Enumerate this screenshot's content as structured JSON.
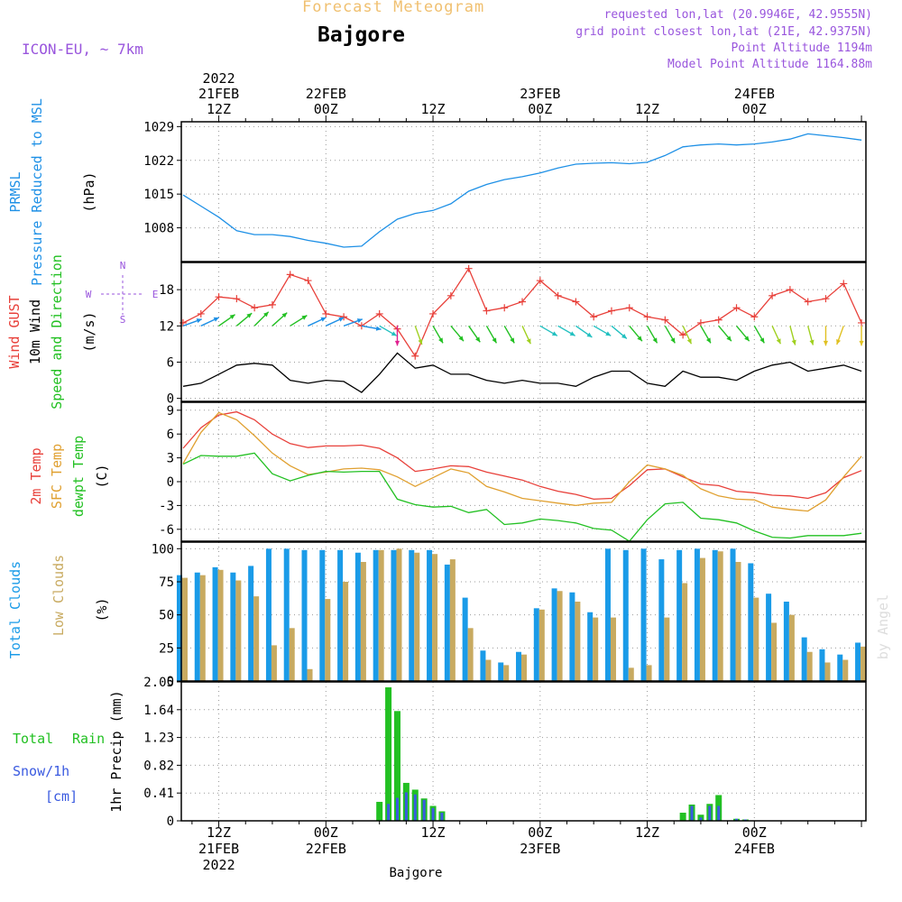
{
  "header": {
    "subtitle": "Forecast Meteogram",
    "title": "Bajgore",
    "model": "ICON-EU, ~ 7km",
    "requested": "requested lon,lat (20.9946E, 42.9555N)",
    "gridpoint": "grid point closest lon,lat (21E, 42.9375N)",
    "altitude": "Point Altitude 1194m",
    "model_altitude": "Model Point Altitude 1164.88m",
    "footer_location": "Bajgore",
    "watermark": "by Angel"
  },
  "colors": {
    "pressure": "#1e90e6",
    "gust": "#e8403a",
    "wind10m": "#000000",
    "temp2m": "#e8403a",
    "sfc_temp": "#e0a030",
    "dewpt": "#22c022",
    "total_clouds": "#1a9be8",
    "low_clouds": "#c8aa60",
    "rain": "#22c022",
    "snow": "#3a5ae0",
    "meta": "#9955dd",
    "subtitle": "#f0c070",
    "grid": "#999999"
  },
  "axis_time": {
    "top_labels": [
      {
        "t": 12,
        "lines": [
          "2022",
          "21FEB",
          "12Z"
        ]
      },
      {
        "t": 24,
        "lines": [
          "22FEB",
          "00Z"
        ]
      },
      {
        "t": 36,
        "lines": [
          "12Z"
        ]
      },
      {
        "t": 48,
        "lines": [
          "23FEB",
          "00Z"
        ]
      },
      {
        "t": 60,
        "lines": [
          "12Z"
        ]
      },
      {
        "t": 72,
        "lines": [
          "24FEB",
          "00Z"
        ]
      }
    ],
    "bottom_labels": [
      {
        "t": 12,
        "lines": [
          "12Z",
          "21FEB",
          "2022"
        ]
      },
      {
        "t": 24,
        "lines": [
          "00Z",
          "22FEB"
        ]
      },
      {
        "t": 36,
        "lines": [
          "12Z"
        ]
      },
      {
        "t": 48,
        "lines": [
          "00Z",
          "23FEB"
        ]
      },
      {
        "t": 60,
        "lines": [
          "12Z"
        ]
      },
      {
        "t": 72,
        "lines": [
          "00Z",
          "24FEB"
        ]
      }
    ],
    "start_hour": 7.8,
    "end_hour": 84.5
  },
  "panels": {
    "pressure": {
      "labels": [
        "PRMSL",
        "Pressure Reduced to MSL",
        "(hPa)"
      ],
      "ticks": [
        "1029",
        "1022",
        "1015",
        "1008"
      ]
    },
    "wind": {
      "labels": [
        "Wind GUST",
        "10m Wind",
        "Speed and Direction",
        "(m/s)"
      ],
      "ticks": [
        "18",
        "12",
        "6",
        "0"
      ],
      "compass": [
        "N",
        "W",
        "E",
        "S"
      ]
    },
    "temp": {
      "labels": [
        "2m Temp",
        "SFC Temp",
        "dewpt Temp",
        "(C)"
      ],
      "ticks": [
        "9",
        "6",
        "3",
        "0",
        "-3",
        "-6"
      ]
    },
    "clouds": {
      "labels": [
        "Total Clouds",
        "Low Clouds",
        "(%)"
      ],
      "ticks": [
        "100",
        "75",
        "50",
        "25",
        "0"
      ]
    },
    "precip": {
      "labels": [
        "Total",
        "Rain",
        "Snow/1h",
        "[cm]",
        "1hr Precip (mm)"
      ],
      "ticks": [
        "2.05",
        "1.64",
        "1.23",
        "0.82",
        "0.41",
        "0"
      ]
    }
  },
  "chart_data": [
    {
      "type": "line",
      "title": "PRMSL Pressure Reduced to MSL",
      "ylabel": "(hPa)",
      "ylim": [
        1001,
        1030
      ],
      "x": [
        8,
        10,
        12,
        14,
        16,
        18,
        20,
        22,
        24,
        26,
        28,
        30,
        32,
        34,
        36,
        38,
        40,
        42,
        44,
        46,
        48,
        50,
        52,
        54,
        56,
        58,
        60,
        62,
        64,
        66,
        68,
        70,
        72,
        74,
        76,
        78,
        80,
        82,
        84
      ],
      "series": [
        {
          "name": "PRMSL",
          "values": [
            1014.8,
            1012.5,
            1010.2,
            1007.4,
            1006.6,
            1006.6,
            1006.2,
            1005.4,
            1004.8,
            1004.0,
            1004.2,
            1007.2,
            1009.8,
            1011.0,
            1011.6,
            1013.0,
            1015.6,
            1017.0,
            1018.0,
            1018.6,
            1019.4,
            1020.4,
            1021.2,
            1021.4,
            1021.5,
            1021.3,
            1021.6,
            1023.0,
            1024.8,
            1025.2,
            1025.4,
            1025.2,
            1025.4,
            1025.8,
            1026.4,
            1027.5,
            1027.1,
            1026.7,
            1026.2
          ]
        }
      ],
      "grid": true
    },
    {
      "type": "line",
      "title": "Wind GUST / 10m Wind Speed and Direction",
      "ylabel": "(m/s)",
      "ylim": [
        -0.5,
        22.5
      ],
      "x": [
        8,
        10,
        12,
        14,
        16,
        18,
        20,
        22,
        24,
        26,
        28,
        30,
        32,
        34,
        36,
        38,
        40,
        42,
        44,
        46,
        48,
        50,
        52,
        54,
        56,
        58,
        60,
        62,
        64,
        66,
        68,
        70,
        72,
        74,
        76,
        78,
        80,
        82,
        84
      ],
      "series": [
        {
          "name": "Wind GUST",
          "values": [
            12.5,
            14.0,
            16.8,
            16.5,
            15.0,
            15.5,
            20.5,
            19.5,
            14.0,
            13.5,
            12.0,
            14.0,
            11.5,
            7.0,
            14.0,
            17.0,
            21.5,
            14.5,
            15.0,
            16.0,
            19.5,
            17.0,
            16.0,
            13.5,
            14.5,
            15.0,
            13.5,
            13.0,
            10.5,
            12.5,
            13.0,
            15.0,
            13.5,
            17.0,
            18.0,
            16.0,
            16.5,
            19.0,
            12.5
          ]
        },
        {
          "name": "10m Wind",
          "values": [
            2.0,
            2.5,
            4.0,
            5.5,
            5.8,
            5.5,
            3.0,
            2.5,
            3.0,
            2.8,
            1.0,
            4.0,
            7.5,
            5.0,
            5.5,
            4.0,
            4.0,
            3.0,
            2.5,
            3.0,
            2.5,
            2.5,
            2.0,
            3.5,
            4.5,
            4.5,
            2.5,
            2.0,
            4.5,
            3.5,
            3.5,
            3.0,
            4.5,
            5.5,
            6.0,
            4.5,
            5.0,
            5.5,
            4.5
          ]
        }
      ],
      "grid": true
    },
    {
      "type": "line",
      "title": "2m Temp / SFC Temp / dewpt Temp",
      "ylabel": "(C)",
      "ylim": [
        -7.5,
        10
      ],
      "x": [
        8,
        10,
        12,
        14,
        16,
        18,
        20,
        22,
        24,
        26,
        28,
        30,
        32,
        34,
        36,
        38,
        40,
        42,
        44,
        46,
        48,
        50,
        52,
        54,
        56,
        58,
        60,
        62,
        64,
        66,
        68,
        70,
        72,
        74,
        76,
        78,
        80,
        82,
        84
      ],
      "series": [
        {
          "name": "2m Temp",
          "values": [
            4.2,
            6.8,
            8.4,
            8.8,
            7.8,
            6.0,
            4.8,
            4.3,
            4.5,
            4.5,
            4.6,
            4.2,
            3.0,
            1.3,
            1.6,
            2.0,
            1.9,
            1.2,
            0.7,
            0.2,
            -0.6,
            -1.2,
            -1.6,
            -2.2,
            -2.1,
            -0.5,
            1.5,
            1.6,
            0.6,
            -0.3,
            -0.5,
            -1.2,
            -1.4,
            -1.7,
            -1.8,
            -2.1,
            -1.4,
            0.5,
            1.4
          ]
        },
        {
          "name": "SFC Temp",
          "values": [
            2.3,
            6.2,
            8.7,
            7.8,
            5.8,
            3.6,
            2.0,
            0.9,
            1.2,
            1.6,
            1.7,
            1.5,
            0.6,
            -0.6,
            0.5,
            1.6,
            1.1,
            -0.6,
            -1.3,
            -2.1,
            -2.4,
            -2.7,
            -3.0,
            -2.7,
            -2.6,
            0.0,
            2.1,
            1.6,
            0.8,
            -0.9,
            -1.8,
            -2.2,
            -2.3,
            -3.2,
            -3.5,
            -3.7,
            -2.3,
            0.6,
            3.2
          ]
        },
        {
          "name": "dewpt Temp",
          "values": [
            2.2,
            3.3,
            3.2,
            3.2,
            3.6,
            1.0,
            0.1,
            0.8,
            1.3,
            1.2,
            1.3,
            1.3,
            -2.2,
            -2.9,
            -3.2,
            -3.1,
            -3.9,
            -3.5,
            -5.4,
            -5.2,
            -4.7,
            -4.9,
            -5.2,
            -5.9,
            -6.1,
            -7.5,
            -4.8,
            -2.8,
            -2.6,
            -4.6,
            -4.8,
            -5.2,
            -6.2,
            -7.0,
            -7.1,
            -6.8,
            -6.8,
            -6.8,
            -6.5
          ]
        }
      ],
      "grid": true
    },
    {
      "type": "bar",
      "title": "Total Clouds / Low Clouds",
      "ylabel": "(%)",
      "ylim": [
        0,
        105
      ],
      "x": [
        8,
        10,
        12,
        14,
        16,
        18,
        20,
        22,
        24,
        26,
        28,
        30,
        32,
        34,
        36,
        38,
        40,
        42,
        44,
        46,
        48,
        50,
        52,
        54,
        56,
        58,
        60,
        62,
        64,
        66,
        68,
        70,
        72,
        74,
        76,
        78,
        80,
        82,
        84
      ],
      "series": [
        {
          "name": "Total Clouds",
          "values": [
            80,
            82,
            86,
            82,
            87,
            100,
            100,
            99,
            99,
            99,
            97,
            99,
            99,
            99,
            99,
            88,
            63,
            23,
            14,
            22,
            55,
            70,
            67,
            52,
            100,
            99,
            100,
            92,
            99,
            100,
            99,
            100,
            89,
            66,
            60,
            33,
            24,
            20,
            29
          ]
        },
        {
          "name": "Low Clouds",
          "values": [
            78,
            80,
            84,
            76,
            64,
            27,
            40,
            9,
            62,
            75,
            90,
            99,
            100,
            97,
            96,
            92,
            40,
            16,
            12,
            20,
            54,
            68,
            60,
            48,
            48,
            10,
            12,
            48,
            74,
            93,
            98,
            90,
            63,
            44,
            50,
            22,
            14,
            16,
            26
          ]
        }
      ],
      "grid": true
    },
    {
      "type": "bar",
      "title": "1hr Precip",
      "ylabel": "1hr Precip (mm)",
      "ylim": [
        0,
        2.05
      ],
      "x": [
        30,
        31,
        32,
        33,
        34,
        35,
        36,
        37,
        64,
        65,
        66,
        67,
        68,
        69,
        70,
        71
      ],
      "series": [
        {
          "name": "Total Rain",
          "values": [
            0.28,
            1.97,
            1.62,
            0.56,
            0.46,
            0.33,
            0.22,
            0.14,
            0.12,
            0.24,
            0.09,
            0.25,
            0.38,
            0.0,
            0.03,
            0.02
          ]
        },
        {
          "name": "Snow/1h",
          "values": [
            0.0,
            0.25,
            0.34,
            0.42,
            0.39,
            0.31,
            0.19,
            0.12,
            0.0,
            0.22,
            0.05,
            0.22,
            0.22,
            0.0,
            0.03,
            0.02
          ]
        }
      ],
      "grid": true
    }
  ],
  "wind_arrows": {
    "x": [
      8,
      10,
      12,
      14,
      16,
      18,
      20,
      22,
      24,
      26,
      28,
      30,
      32,
      34,
      36,
      38,
      40,
      42,
      44,
      46,
      48,
      50,
      52,
      54,
      56,
      58,
      60,
      62,
      64,
      66,
      68,
      70,
      72,
      74,
      76,
      78,
      80,
      82,
      84
    ],
    "dir_deg": [
      250,
      245,
      235,
      230,
      225,
      228,
      238,
      245,
      245,
      250,
      280,
      300,
      0,
      340,
      330,
      320,
      325,
      330,
      330,
      335,
      300,
      300,
      305,
      300,
      310,
      320,
      330,
      330,
      335,
      330,
      320,
      320,
      330,
      335,
      345,
      345,
      0,
      20,
      0
    ],
    "level": 12
  }
}
